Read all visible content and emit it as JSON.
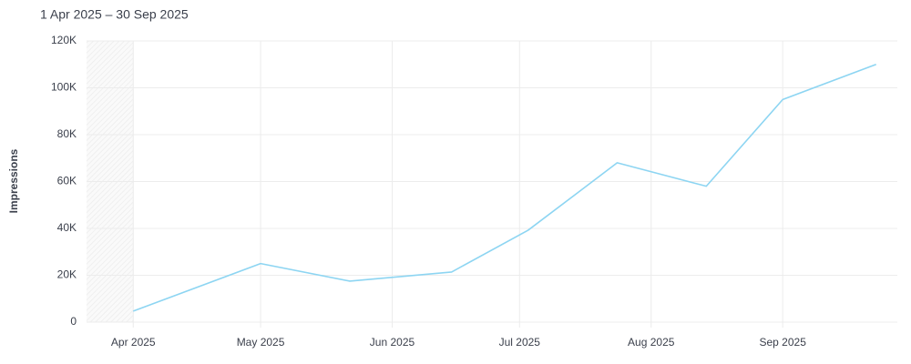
{
  "chart_data": {
    "type": "line",
    "title": "1 Apr 2025 – 30 Sep 2025",
    "y_label": "Impressions",
    "x": [
      "2025-04-01",
      "2025-05-01",
      "2025-05-22",
      "2025-06-15",
      "2025-07-03",
      "2025-07-24",
      "2025-08-14",
      "2025-09-01",
      "2025-09-23"
    ],
    "series": [
      {
        "name": "Impressions",
        "color": "#8dd5f2",
        "values": [
          4700,
          25000,
          17500,
          21400,
          39200,
          68000,
          58000,
          95000,
          110000
        ]
      }
    ],
    "xlim": [
      "2025-03-21",
      "2025-09-28"
    ],
    "xticks": [
      {
        "value": "2025-04-01",
        "label": "Apr 2025"
      },
      {
        "value": "2025-05-01",
        "label": "May 2025"
      },
      {
        "value": "2025-06-01",
        "label": "Jun 2025"
      },
      {
        "value": "2025-07-01",
        "label": "Jul 2025"
      },
      {
        "value": "2025-08-01",
        "label": "Aug 2025"
      },
      {
        "value": "2025-09-01",
        "label": "Sep 2025"
      }
    ],
    "ylim": [
      0,
      120000
    ],
    "yticks": [
      0,
      {
        "value": 20000,
        "label": "20K"
      },
      {
        "value": 40000,
        "label": "40K"
      },
      {
        "value": 60000,
        "label": "60K"
      },
      {
        "value": 80000,
        "label": "80K"
      },
      {
        "value": 100000,
        "label": "100K"
      },
      {
        "value": 120000,
        "label": "120K"
      }
    ],
    "grid": true
  }
}
